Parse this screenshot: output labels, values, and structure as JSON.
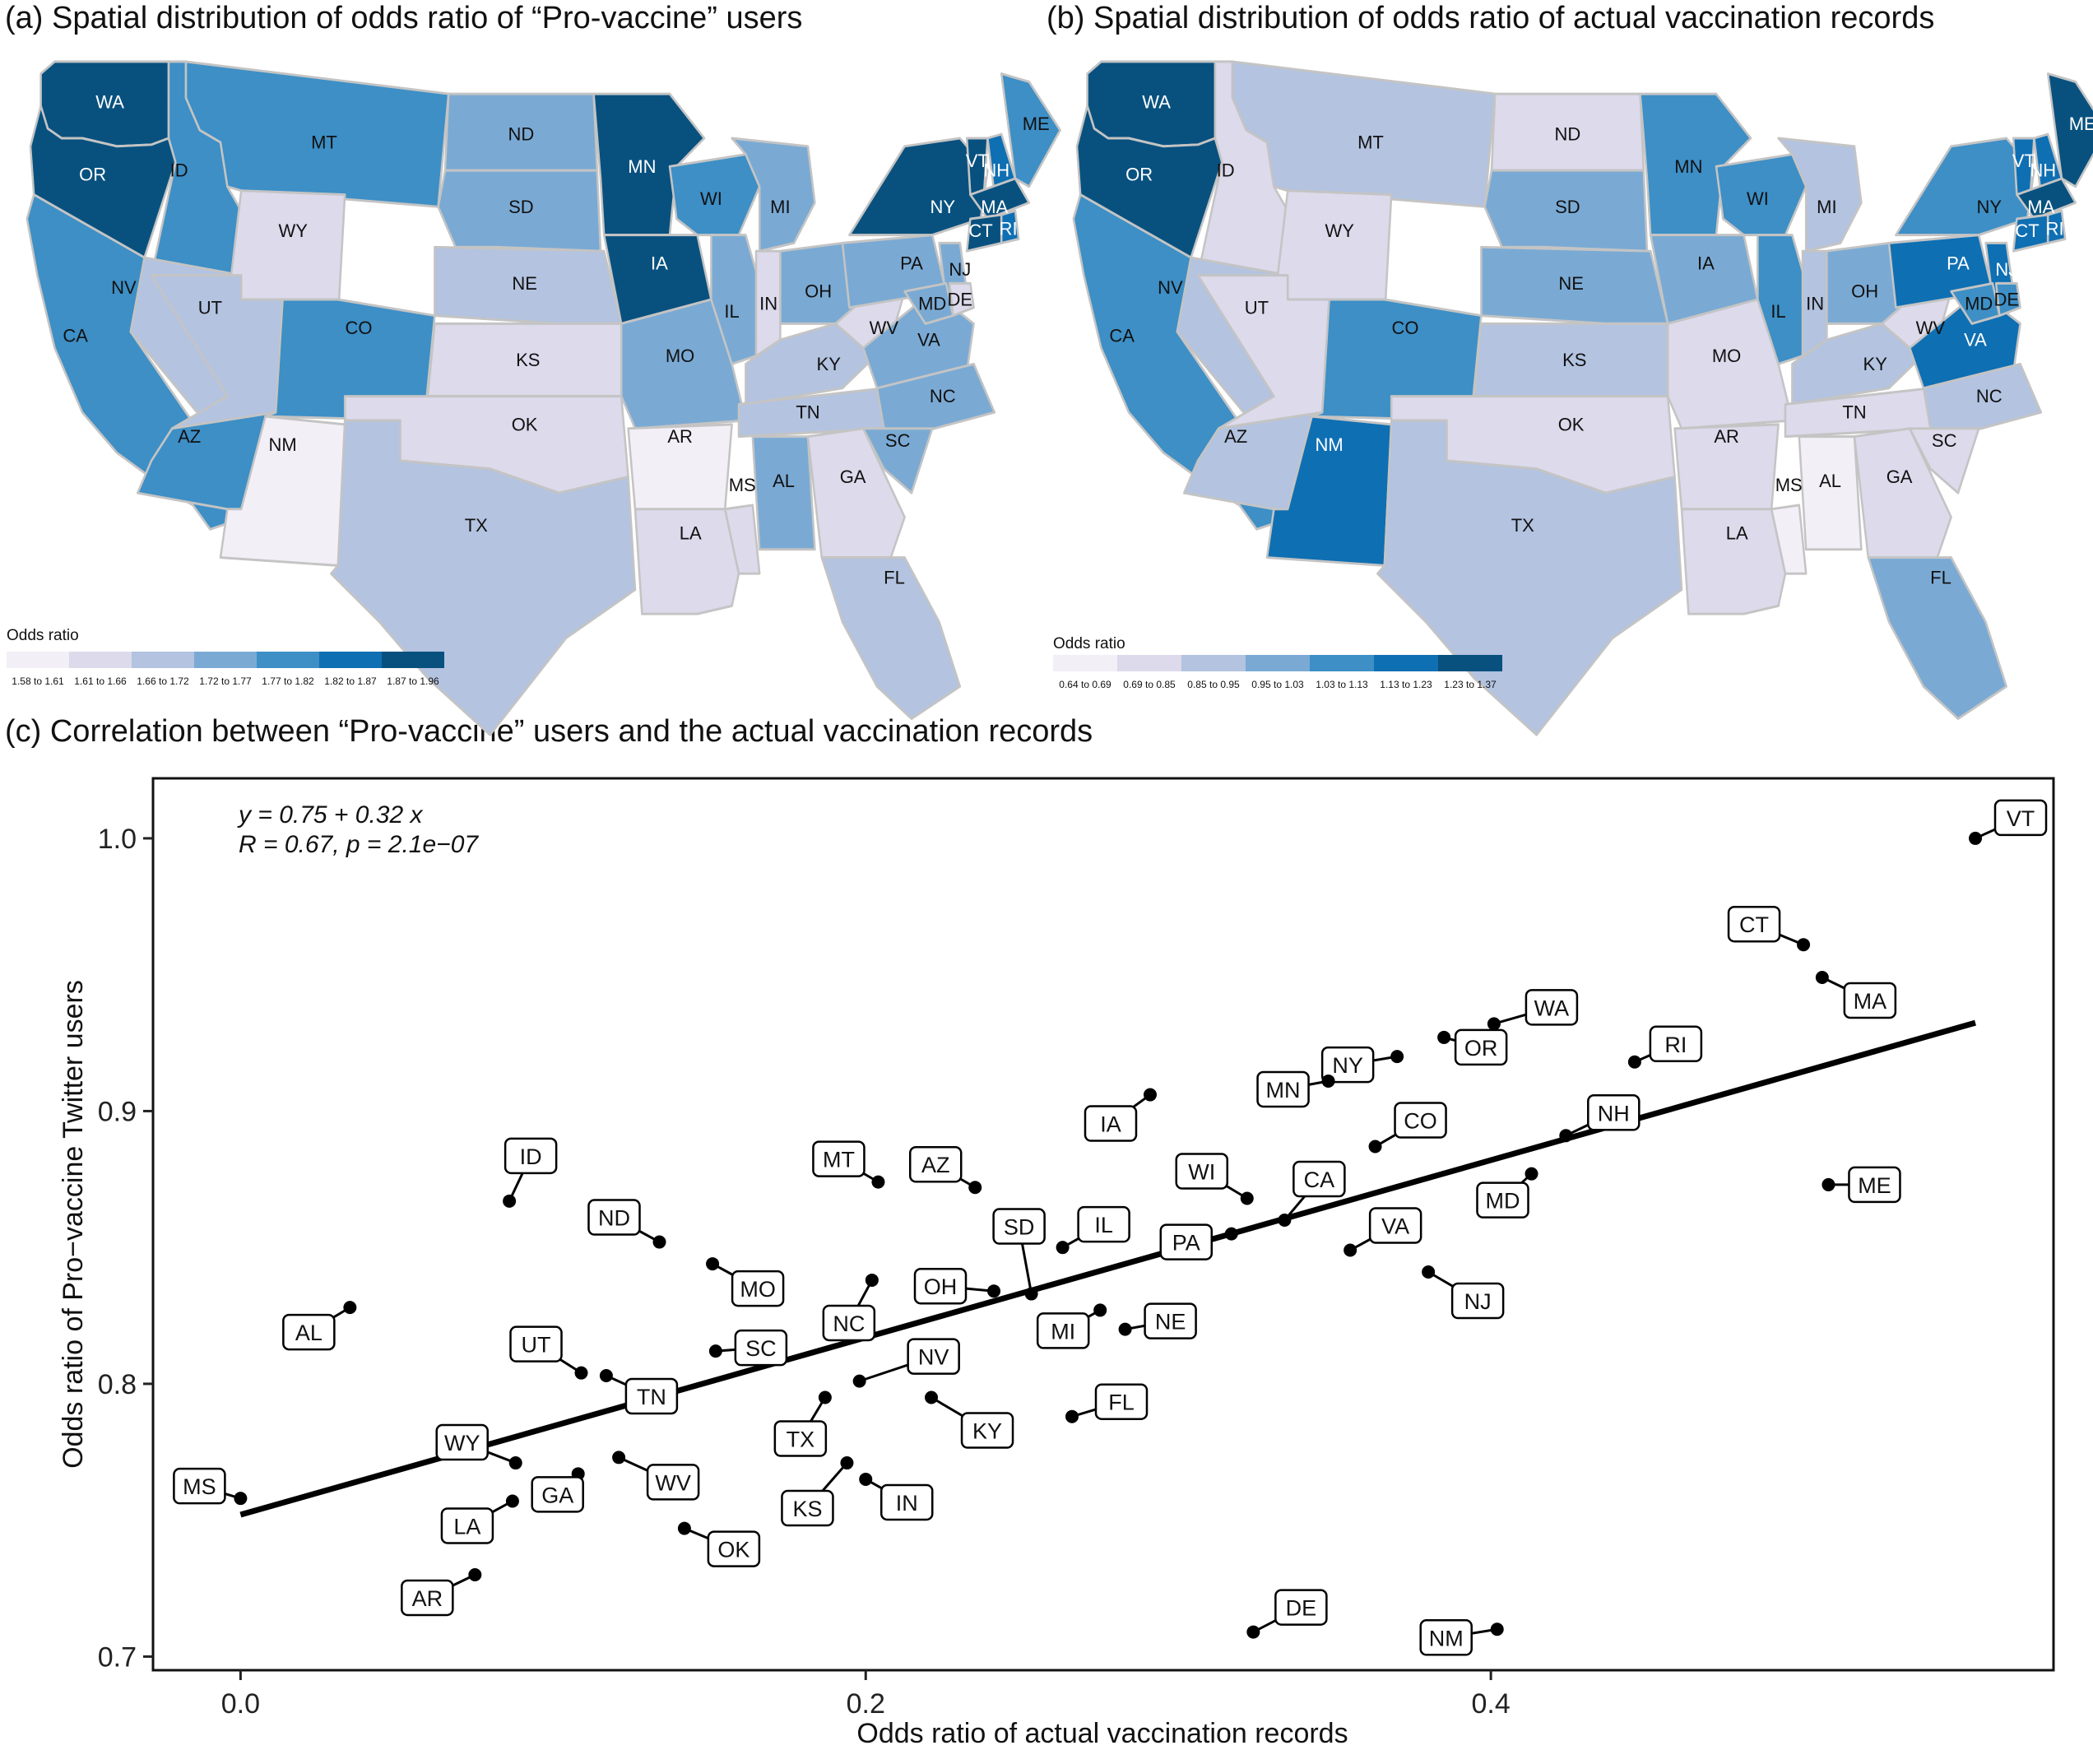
{
  "panel_a": {
    "title": "(a) Spatial distribution of odds ratio of “Pro-vaccine” users",
    "legend_title": "Odds ratio",
    "legend_bins": [
      "1.58 to 1.61",
      "1.61 to 1.66",
      "1.66 to 1.72",
      "1.72 to 1.77",
      "1.77 to 1.82",
      "1.82 to 1.87",
      "1.87 to 1.96"
    ]
  },
  "panel_b": {
    "title": "(b) Spatial distribution of odds ratio of actual vaccination records",
    "legend_title": "Odds ratio",
    "legend_bins": [
      "0.64 to 0.69",
      "0.69 to 0.85",
      "0.85 to 0.95",
      "0.95 to 1.03",
      "1.03 to 1.13",
      "1.13 to 1.23",
      "1.23 to 1.37"
    ]
  },
  "palette": [
    "#f3eff7",
    "#dcdaeb",
    "#b3c3e0",
    "#7aaad4",
    "#3d8fc6",
    "#0f6fb3",
    "#08517f"
  ],
  "map_states": [
    {
      "s": "WA",
      "a": 6,
      "b": 6
    },
    {
      "s": "OR",
      "a": 6,
      "b": 6
    },
    {
      "s": "CA",
      "a": 4,
      "b": 4
    },
    {
      "s": "ID",
      "a": 4,
      "b": 1
    },
    {
      "s": "NV",
      "a": 2,
      "b": 2
    },
    {
      "s": "MT",
      "a": 4,
      "b": 2
    },
    {
      "s": "WY",
      "a": 1,
      "b": 1
    },
    {
      "s": "UT",
      "a": 2,
      "b": 1
    },
    {
      "s": "AZ",
      "a": 4,
      "b": 2
    },
    {
      "s": "CO",
      "a": 4,
      "b": 4
    },
    {
      "s": "NM",
      "a": 0,
      "b": 5
    },
    {
      "s": "ND",
      "a": 3,
      "b": 1
    },
    {
      "s": "SD",
      "a": 3,
      "b": 3
    },
    {
      "s": "NE",
      "a": 2,
      "b": 3
    },
    {
      "s": "KS",
      "a": 1,
      "b": 2
    },
    {
      "s": "OK",
      "a": 1,
      "b": 1
    },
    {
      "s": "TX",
      "a": 2,
      "b": 2
    },
    {
      "s": "MN",
      "a": 6,
      "b": 4
    },
    {
      "s": "IA",
      "a": 6,
      "b": 3
    },
    {
      "s": "MO",
      "a": 3,
      "b": 1
    },
    {
      "s": "AR",
      "a": 0,
      "b": 1
    },
    {
      "s": "LA",
      "a": 1,
      "b": 1
    },
    {
      "s": "WI",
      "a": 4,
      "b": 4
    },
    {
      "s": "IL",
      "a": 3,
      "b": 4
    },
    {
      "s": "MS",
      "a": 1,
      "b": 0
    },
    {
      "s": "MI",
      "a": 3,
      "b": 2
    },
    {
      "s": "IN",
      "a": 1,
      "b": 2
    },
    {
      "s": "KY",
      "a": 2,
      "b": 2
    },
    {
      "s": "TN",
      "a": 2,
      "b": 1
    },
    {
      "s": "AL",
      "a": 3,
      "b": 0
    },
    {
      "s": "OH",
      "a": 3,
      "b": 3
    },
    {
      "s": "GA",
      "a": 1,
      "b": 1
    },
    {
      "s": "FL",
      "a": 2,
      "b": 3
    },
    {
      "s": "WV",
      "a": 1,
      "b": 1
    },
    {
      "s": "VA",
      "a": 3,
      "b": 5
    },
    {
      "s": "NC",
      "a": 3,
      "b": 2
    },
    {
      "s": "SC",
      "a": 3,
      "b": 1
    },
    {
      "s": "PA",
      "a": 3,
      "b": 5
    },
    {
      "s": "NY",
      "a": 6,
      "b": 4
    },
    {
      "s": "NJ",
      "a": 3,
      "b": 5
    },
    {
      "s": "MD",
      "a": 3,
      "b": 4
    },
    {
      "s": "DE",
      "a": 1,
      "b": 4
    },
    {
      "s": "VT",
      "a": 6,
      "b": 5
    },
    {
      "s": "NH",
      "a": 5,
      "b": 5
    },
    {
      "s": "ME",
      "a": 4,
      "b": 6
    },
    {
      "s": "MA",
      "a": 6,
      "b": 6
    },
    {
      "s": "CT",
      "a": 6,
      "b": 5
    },
    {
      "s": "RI",
      "a": 5,
      "b": 5
    }
  ],
  "panel_c": {
    "title": "(c) Correlation between “Pro-vaccine” users and the actual vaccination records",
    "equation": "y = 0.75 + 0.32 x",
    "stats": "R = 0.67, p = 2.1e−07"
  },
  "chart_data": {
    "type": "scatter",
    "title": "(c) Correlation between “Pro-vaccine” users and the actual vaccination records",
    "xlabel": "Odds ratio of actual vaccination records",
    "ylabel": "Odds ratio of Pro−vaccine Twitter users",
    "xlim": [
      -0.028,
      0.58
    ],
    "ylim": [
      0.695,
      1.022
    ],
    "xticks": [
      0.0,
      0.2,
      0.4
    ],
    "xtick_labels": [
      "0.0",
      "0.2",
      "0.4"
    ],
    "yticks": [
      0.7,
      0.8,
      0.9,
      1.0
    ],
    "ytick_labels": [
      "0.7",
      "0.8",
      "0.9",
      "1.0"
    ],
    "grid": false,
    "fit": {
      "intercept": 0.752,
      "slope": 0.325,
      "x_range": [
        0.0,
        0.555
      ]
    },
    "points": [
      {
        "label": "VT",
        "x": 0.555,
        "y": 1.0
      },
      {
        "label": "CT",
        "x": 0.5,
        "y": 0.961
      },
      {
        "label": "MA",
        "x": 0.506,
        "y": 0.949
      },
      {
        "label": "WA",
        "x": 0.401,
        "y": 0.932
      },
      {
        "label": "OR",
        "x": 0.385,
        "y": 0.927
      },
      {
        "label": "NY",
        "x": 0.37,
        "y": 0.92
      },
      {
        "label": "MN",
        "x": 0.348,
        "y": 0.911
      },
      {
        "label": "RI",
        "x": 0.446,
        "y": 0.918
      },
      {
        "label": "IA",
        "x": 0.291,
        "y": 0.906
      },
      {
        "label": "NH",
        "x": 0.424,
        "y": 0.891
      },
      {
        "label": "CO",
        "x": 0.363,
        "y": 0.887
      },
      {
        "label": "ME",
        "x": 0.508,
        "y": 0.873
      },
      {
        "label": "MD",
        "x": 0.413,
        "y": 0.877
      },
      {
        "label": "MT",
        "x": 0.204,
        "y": 0.874
      },
      {
        "label": "AZ",
        "x": 0.235,
        "y": 0.872
      },
      {
        "label": "ID",
        "x": 0.086,
        "y": 0.867
      },
      {
        "label": "WI",
        "x": 0.322,
        "y": 0.868
      },
      {
        "label": "CA",
        "x": 0.334,
        "y": 0.86
      },
      {
        "label": "ND",
        "x": 0.134,
        "y": 0.852
      },
      {
        "label": "SD",
        "x": 0.253,
        "y": 0.833
      },
      {
        "label": "IL",
        "x": 0.263,
        "y": 0.85
      },
      {
        "label": "PA",
        "x": 0.317,
        "y": 0.855
      },
      {
        "label": "VA",
        "x": 0.355,
        "y": 0.849
      },
      {
        "label": "MO",
        "x": 0.151,
        "y": 0.844
      },
      {
        "label": "NJ",
        "x": 0.38,
        "y": 0.841
      },
      {
        "label": "NC",
        "x": 0.202,
        "y": 0.838
      },
      {
        "label": "OH",
        "x": 0.241,
        "y": 0.834
      },
      {
        "label": "AL",
        "x": 0.035,
        "y": 0.828
      },
      {
        "label": "MI",
        "x": 0.275,
        "y": 0.827
      },
      {
        "label": "NE",
        "x": 0.283,
        "y": 0.82
      },
      {
        "label": "SC",
        "x": 0.152,
        "y": 0.812
      },
      {
        "label": "UT",
        "x": 0.109,
        "y": 0.804
      },
      {
        "label": "TN",
        "x": 0.117,
        "y": 0.803
      },
      {
        "label": "NV",
        "x": 0.198,
        "y": 0.801
      },
      {
        "label": "TX",
        "x": 0.187,
        "y": 0.795
      },
      {
        "label": "KY",
        "x": 0.221,
        "y": 0.795
      },
      {
        "label": "FL",
        "x": 0.266,
        "y": 0.788
      },
      {
        "label": "WY",
        "x": 0.088,
        "y": 0.771
      },
      {
        "label": "WV",
        "x": 0.121,
        "y": 0.773
      },
      {
        "label": "KS",
        "x": 0.194,
        "y": 0.771
      },
      {
        "label": "IN",
        "x": 0.2,
        "y": 0.765
      },
      {
        "label": "MS",
        "x": 0.0,
        "y": 0.758
      },
      {
        "label": "LA",
        "x": 0.087,
        "y": 0.757
      },
      {
        "label": "GA",
        "x": 0.108,
        "y": 0.767
      },
      {
        "label": "OK",
        "x": 0.142,
        "y": 0.747
      },
      {
        "label": "AR",
        "x": 0.075,
        "y": 0.73
      },
      {
        "label": "DE",
        "x": 0.324,
        "y": 0.709
      },
      {
        "label": "NM",
        "x": 0.402,
        "y": 0.71
      }
    ]
  }
}
